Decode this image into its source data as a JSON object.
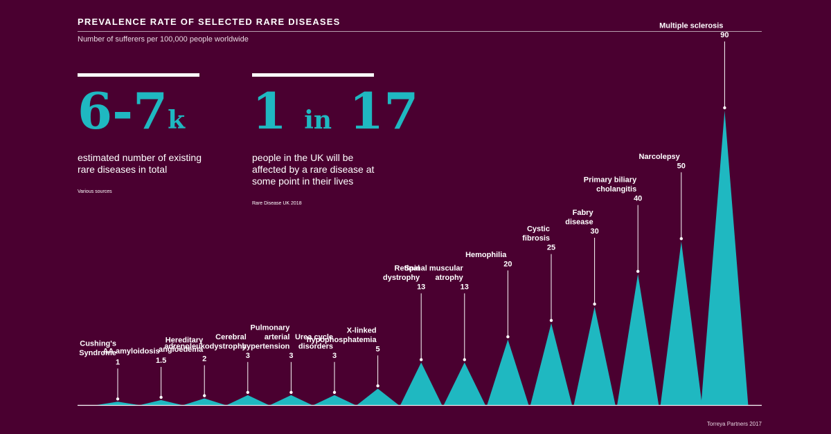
{
  "header": {
    "title": "PREVALENCE RATE OF SELECTED RARE DISEASES",
    "subtitle": "Number of sufferers per 100,000 people worldwide"
  },
  "stats": [
    {
      "big_main": "6-7",
      "big_suffix": "k",
      "description_lines": [
        "estimated number of existing",
        "rare diseases in total"
      ],
      "source": "Various sources"
    },
    {
      "big_main": "1",
      "big_suffix": "in",
      "big_tail": "17",
      "description_lines": [
        "people in the UK will be",
        "affected by a rare disease at",
        "some point in their lives"
      ],
      "source": "Rare Disease UK 2018"
    }
  ],
  "footer": {
    "credit": "Torreya Partners 2017"
  },
  "colors": {
    "background": "#4a0030",
    "accent": "#1fb8c1",
    "text": "#ffffff"
  },
  "chart_data": {
    "type": "area",
    "ylim": [
      0,
      90
    ],
    "categories": [
      {
        "label_lines": [
          "Cushing's",
          "Syndrome"
        ],
        "value_label": "1",
        "value": 1
      },
      {
        "label_lines": [
          "AA amyloidosis"
        ],
        "value_label": "1.5",
        "value": 1.5
      },
      {
        "label_lines": [
          "Hereditary",
          "angioedema"
        ],
        "value_label": "2",
        "value": 2
      },
      {
        "label_lines": [
          "Cerebral",
          "adrenoleukodystrophy"
        ],
        "value_label": "3",
        "value": 3
      },
      {
        "label_lines": [
          "Pulmonary",
          "arterial",
          "hypertension"
        ],
        "value_label": "3",
        "value": 3
      },
      {
        "label_lines": [
          "Urea cycle",
          "disorders"
        ],
        "value_label": "3",
        "value": 3
      },
      {
        "label_lines": [
          "X-linked",
          "hypophosphatemia"
        ],
        "value_label": "5",
        "value": 5
      },
      {
        "label_lines": [
          "Retinal",
          "dystrophy"
        ],
        "value_label": "13",
        "value": 13
      },
      {
        "label_lines": [
          "Spinal muscular",
          "atrophy"
        ],
        "value_label": "13",
        "value": 13
      },
      {
        "label_lines": [
          "Hemophilia"
        ],
        "value_label": "20",
        "value": 20
      },
      {
        "label_lines": [
          "Cystic",
          "fibrosis"
        ],
        "value_label": "25",
        "value": 25
      },
      {
        "label_lines": [
          "Fabry",
          "disease"
        ],
        "value_label": "30",
        "value": 30
      },
      {
        "label_lines": [
          "Primary biliary",
          "cholangitis"
        ],
        "value_label": "40",
        "value": 40
      },
      {
        "label_lines": [
          "Narcolepsy"
        ],
        "value_label": "50",
        "value": 50
      },
      {
        "label_lines": [
          "Multiple sclerosis"
        ],
        "value_label": "90",
        "value": 90
      }
    ]
  }
}
